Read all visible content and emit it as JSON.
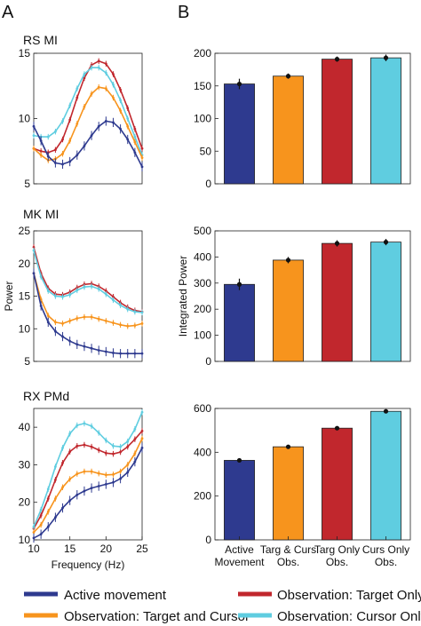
{
  "panel_letters": [
    "A",
    "B"
  ],
  "colors": {
    "active": "#2e3a8f",
    "target_cursor": "#f7941d",
    "target_only": "#c1272d",
    "cursor_only": "#5fcde0"
  },
  "legend": {
    "active": "Active movement",
    "target_cursor": "Observation: Target and Cursor",
    "target_only": "Observation: Target Only",
    "cursor_only": "Observation: Cursor Only"
  },
  "chart_data": [
    {
      "type": "line",
      "title": "RS MI",
      "xlabel": "",
      "ylabel": "",
      "xlim": [
        10,
        25
      ],
      "ylim": [
        5,
        15
      ],
      "yticks": [
        5,
        10,
        15
      ],
      "xticks": [],
      "x": [
        10,
        11,
        12,
        13,
        14,
        15,
        16,
        17,
        18,
        19,
        20,
        21,
        22,
        23,
        24,
        25
      ],
      "series": [
        {
          "key": "active",
          "values": [
            9.4,
            8.3,
            7.1,
            6.6,
            6.5,
            6.7,
            7.2,
            7.9,
            8.7,
            9.4,
            9.8,
            9.7,
            9.2,
            8.4,
            7.4,
            6.3
          ]
        },
        {
          "key": "target_cursor",
          "values": [
            7.7,
            7.2,
            6.8,
            6.9,
            7.3,
            8.3,
            9.6,
            10.9,
            11.9,
            12.4,
            12.3,
            11.6,
            10.6,
            9.4,
            8.2,
            7.0
          ]
        },
        {
          "key": "target_only",
          "values": [
            7.7,
            7.5,
            7.4,
            7.6,
            8.4,
            9.9,
            11.6,
            13.1,
            14.1,
            14.4,
            14.2,
            13.4,
            12.2,
            10.8,
            9.2,
            7.7
          ]
        },
        {
          "key": "cursor_only",
          "values": [
            8.7,
            8.6,
            8.6,
            9.0,
            9.8,
            11.0,
            12.3,
            13.4,
            13.9,
            13.9,
            13.5,
            12.6,
            11.4,
            10.0,
            8.6,
            7.2
          ]
        }
      ]
    },
    {
      "type": "line",
      "title": "MK MI",
      "xlabel": "",
      "ylabel": "Power",
      "xlim": [
        10,
        25
      ],
      "ylim": [
        5,
        25
      ],
      "yticks": [
        5,
        10,
        15,
        20,
        25
      ],
      "xticks": [],
      "x": [
        10,
        11,
        12,
        13,
        14,
        15,
        16,
        17,
        18,
        19,
        20,
        21,
        22,
        23,
        24,
        25
      ],
      "series": [
        {
          "key": "active",
          "values": [
            18.5,
            13.5,
            11.0,
            9.6,
            8.8,
            8.1,
            7.6,
            7.3,
            7.0,
            6.7,
            6.5,
            6.3,
            6.2,
            6.2,
            6.2,
            6.2
          ]
        },
        {
          "key": "target_cursor",
          "values": [
            18.5,
            14.5,
            12.0,
            11.0,
            10.8,
            11.2,
            11.6,
            11.8,
            11.8,
            11.5,
            11.2,
            10.9,
            10.6,
            10.4,
            10.5,
            10.8
          ]
        },
        {
          "key": "target_only",
          "values": [
            22.5,
            18.5,
            16.2,
            15.3,
            15.2,
            15.6,
            16.3,
            16.8,
            16.9,
            16.5,
            15.8,
            14.9,
            14.0,
            13.3,
            12.8,
            12.6
          ]
        },
        {
          "key": "cursor_only",
          "values": [
            22.0,
            18.0,
            15.8,
            15.0,
            14.9,
            15.2,
            15.9,
            16.4,
            16.5,
            16.1,
            15.3,
            14.4,
            13.6,
            13.0,
            12.6,
            12.5
          ]
        }
      ]
    },
    {
      "type": "line",
      "title": "RX PMd",
      "xlabel": "Frequency (Hz)",
      "ylabel": "",
      "xlim": [
        10,
        25
      ],
      "ylim": [
        10,
        45
      ],
      "yticks": [
        10,
        20,
        30,
        40
      ],
      "xticks": [
        10,
        15,
        20,
        25
      ],
      "x": [
        10,
        11,
        12,
        13,
        14,
        15,
        16,
        17,
        18,
        19,
        20,
        21,
        22,
        23,
        24,
        25
      ],
      "series": [
        {
          "key": "active",
          "values": [
            10.5,
            11.5,
            13.5,
            16.0,
            18.5,
            20.5,
            22.0,
            23.0,
            23.8,
            24.3,
            24.8,
            25.3,
            26.3,
            28.0,
            30.8,
            34.5
          ]
        },
        {
          "key": "target_cursor",
          "values": [
            12.0,
            14.0,
            17.5,
            21.0,
            24.0,
            26.2,
            27.6,
            28.2,
            28.2,
            27.7,
            27.3,
            27.4,
            28.2,
            30.0,
            33.0,
            37.0
          ]
        },
        {
          "key": "target_only",
          "values": [
            13.0,
            16.5,
            21.0,
            26.0,
            30.5,
            33.5,
            35.0,
            35.3,
            34.8,
            33.9,
            33.1,
            32.9,
            33.4,
            34.8,
            36.8,
            39.0
          ]
        },
        {
          "key": "cursor_only",
          "values": [
            13.5,
            18.0,
            23.5,
            29.5,
            34.5,
            38.3,
            40.5,
            41.0,
            40.3,
            38.5,
            36.5,
            35.0,
            34.8,
            36.2,
            39.5,
            44.0
          ]
        }
      ]
    },
    {
      "type": "bar",
      "title": "",
      "ylabel": "",
      "ylim": [
        0,
        200
      ],
      "yticks": [
        0,
        50,
        100,
        150,
        200
      ],
      "keys": [
        "active",
        "target_cursor",
        "target_only",
        "cursor_only"
      ],
      "values": [
        153,
        165,
        191,
        193
      ],
      "errors": [
        8,
        4,
        4,
        5
      ]
    },
    {
      "type": "bar",
      "title": "",
      "ylabel": "Integrated Power",
      "ylim": [
        0,
        500
      ],
      "yticks": [
        0,
        100,
        200,
        300,
        400,
        500
      ],
      "keys": [
        "active",
        "target_cursor",
        "target_only",
        "cursor_only"
      ],
      "values": [
        295,
        388,
        452,
        457
      ],
      "errors": [
        22,
        12,
        12,
        12
      ]
    },
    {
      "type": "bar",
      "title": "",
      "ylabel": "",
      "ylim": [
        0,
        600
      ],
      "yticks": [
        0,
        200,
        400,
        600
      ],
      "keys": [
        "active",
        "target_cursor",
        "target_only",
        "cursor_only"
      ],
      "values": [
        363,
        425,
        510,
        587
      ],
      "errors": [
        4,
        4,
        4,
        4
      ],
      "categories": [
        [
          "Active",
          "Movement"
        ],
        [
          "Targ & Curs",
          "Obs."
        ],
        [
          "Targ Only",
          "Obs."
        ],
        [
          "Curs Only",
          "Obs."
        ]
      ]
    }
  ]
}
